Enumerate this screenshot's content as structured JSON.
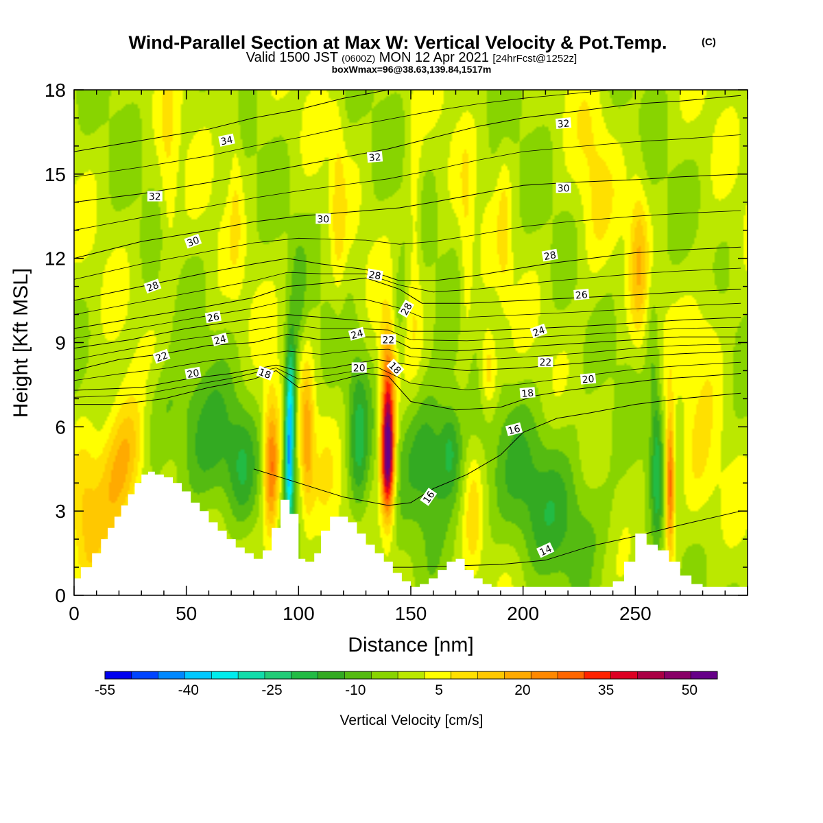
{
  "title": {
    "main": "Wind-Parallel Section at Max W: Vertical Velocity & Pot.Temp.",
    "copyright": "(C)",
    "valid_prefix": "Valid 1500 JST",
    "valid_utc": "(0600Z)",
    "valid_date": "MON 12 Apr 2021",
    "forecast": "[24hrFcst@1252z]",
    "boxwmax": "boxWmax=96@38.63,139.84,1517m"
  },
  "chart_data": {
    "type": "heatmap",
    "xlabel": "Distance [nm]",
    "ylabel": "Height [Kft MSL]",
    "xlim": [
      0,
      300
    ],
    "ylim": [
      0,
      18
    ],
    "x_ticks": [
      "0",
      "50",
      "100",
      "150",
      "200",
      "250"
    ],
    "y_ticks": [
      "0",
      "3",
      "6",
      "9",
      "12",
      "15",
      "18"
    ],
    "colorbar": {
      "label": "Vertical Velocity [cm/s]",
      "levels": [
        -55,
        -50,
        -45,
        -40,
        -35,
        -30,
        -25,
        -20,
        -15,
        -10,
        -5,
        0,
        5,
        10,
        15,
        20,
        25,
        30,
        35,
        40,
        45,
        50,
        55
      ],
      "tick_labels": [
        "-55",
        "-40",
        "-25",
        "-10",
        "5",
        "20",
        "35",
        "50"
      ],
      "colors": [
        "#0000ee",
        "#0044ff",
        "#0088ff",
        "#00c8ff",
        "#00ecec",
        "#11dcaa",
        "#22cc77",
        "#22bb44",
        "#33aa22",
        "#55bb11",
        "#88d400",
        "#bbe800",
        "#ffff00",
        "#ffe000",
        "#ffc800",
        "#ffaa00",
        "#ff8800",
        "#ff6600",
        "#ff2200",
        "#dd0022",
        "#aa0044",
        "#880066",
        "#660088"
      ]
    },
    "terrain": {
      "x": [
        0,
        3,
        8,
        12,
        15,
        18,
        21,
        24,
        27,
        30,
        33,
        36,
        40,
        44,
        48,
        52,
        56,
        60,
        64,
        68,
        72,
        76,
        80,
        84,
        88,
        92,
        96,
        100,
        103,
        107,
        110,
        114,
        118,
        122,
        126,
        130,
        134,
        138,
        142,
        146,
        150,
        154,
        158,
        162,
        166,
        170,
        174,
        178,
        182,
        186,
        190,
        194,
        200,
        210,
        220,
        230,
        240,
        245,
        250,
        255,
        260,
        265,
        270,
        275,
        280,
        285,
        290,
        297
      ],
      "y": [
        0.6,
        1.0,
        1.5,
        2.0,
        2.4,
        2.8,
        3.2,
        3.6,
        4.0,
        4.3,
        4.4,
        4.3,
        4.2,
        4.0,
        3.7,
        3.3,
        3.0,
        2.6,
        2.3,
        2.0,
        1.7,
        1.5,
        1.3,
        1.6,
        2.4,
        3.4,
        2.9,
        1.3,
        1.2,
        1.5,
        2.3,
        2.8,
        2.8,
        2.6,
        2.2,
        1.8,
        1.5,
        1.2,
        0.8,
        0.5,
        0.3,
        0.4,
        0.6,
        0.9,
        1.2,
        1.3,
        0.9,
        0.6,
        0.4,
        0.3,
        0.3,
        0.3,
        0.3,
        0.3,
        0.3,
        0.3,
        0.5,
        1.2,
        2.2,
        1.8,
        1.6,
        1.2,
        0.7,
        0.4,
        0.3,
        0.3,
        0.3,
        0.3
      ]
    },
    "w_features": [
      {
        "x": 5,
        "y": 3.0,
        "sx": 6,
        "sy": 3.0,
        "w": 10
      },
      {
        "x": 18,
        "y": 4.0,
        "sx": 10,
        "sy": 2.5,
        "w": 18
      },
      {
        "x": 25,
        "y": 5.5,
        "sx": 8,
        "sy": 2.0,
        "w": 12
      },
      {
        "x": 40,
        "y": 6.5,
        "sx": 15,
        "sy": 2.0,
        "w": -8
      },
      {
        "x": 60,
        "y": 5.0,
        "sx": 14,
        "sy": 2.5,
        "w": -14
      },
      {
        "x": 75,
        "y": 4.5,
        "sx": 6,
        "sy": 2.0,
        "w": -10
      },
      {
        "x": 88,
        "y": 4.5,
        "sx": 3.5,
        "sy": 2.5,
        "w": 30
      },
      {
        "x": 96,
        "y": 5.0,
        "sx": 2.2,
        "sy": 2.6,
        "w": -42
      },
      {
        "x": 97,
        "y": 7.5,
        "sx": 2.5,
        "sy": 2.0,
        "w": -22
      },
      {
        "x": 104,
        "y": 5.5,
        "sx": 3.0,
        "sy": 2.5,
        "w": 20
      },
      {
        "x": 112,
        "y": 4.5,
        "sx": 6,
        "sy": 2.5,
        "w": 4
      },
      {
        "x": 127,
        "y": 5.5,
        "sx": 4.5,
        "sy": 3.0,
        "w": -16
      },
      {
        "x": 140,
        "y": 5.0,
        "sx": 3.0,
        "sy": 2.2,
        "w": 62
      },
      {
        "x": 140,
        "y": 8.0,
        "sx": 3.5,
        "sy": 2.0,
        "w": 20
      },
      {
        "x": 160,
        "y": 5.0,
        "sx": 12,
        "sy": 2.5,
        "w": -18
      },
      {
        "x": 168,
        "y": 5.2,
        "sx": 4,
        "sy": 1.5,
        "w": -10
      },
      {
        "x": 178,
        "y": 3.0,
        "sx": 4,
        "sy": 2.5,
        "w": 10
      },
      {
        "x": 205,
        "y": 4.0,
        "sx": 25,
        "sy": 3.0,
        "w": -10
      },
      {
        "x": 225,
        "y": 2.5,
        "sx": 20,
        "sy": 2.0,
        "w": -6
      },
      {
        "x": 260,
        "y": 4.5,
        "sx": 2.5,
        "sy": 3.0,
        "w": -16
      },
      {
        "x": 266,
        "y": 4.0,
        "sx": 2.0,
        "sy": 2.5,
        "w": 34
      },
      {
        "x": 278,
        "y": 4.0,
        "sx": 8,
        "sy": 3.0,
        "w": 6
      },
      {
        "x": 42,
        "y": 14.5,
        "sx": 4,
        "sy": 3.5,
        "w": 8
      },
      {
        "x": 72,
        "y": 15.0,
        "sx": 3,
        "sy": 3.5,
        "w": 7
      },
      {
        "x": 118,
        "y": 14.0,
        "sx": 3,
        "sy": 4.0,
        "w": 8
      },
      {
        "x": 152,
        "y": 13.0,
        "sx": 3,
        "sy": 4.0,
        "w": 9
      },
      {
        "x": 175,
        "y": 12.0,
        "sx": 3,
        "sy": 3.5,
        "w": 8
      },
      {
        "x": 185,
        "y": 8.0,
        "sx": 4,
        "sy": 1.5,
        "w": 16
      },
      {
        "x": 192,
        "y": 13.0,
        "sx": 3,
        "sy": 3.0,
        "w": 7
      },
      {
        "x": 232,
        "y": 14.5,
        "sx": 8,
        "sy": 4.0,
        "w": 7
      },
      {
        "x": 252,
        "y": 12.0,
        "sx": 4,
        "sy": 3.0,
        "w": 14
      },
      {
        "x": 283,
        "y": 9.5,
        "sx": 8,
        "sy": 2.5,
        "w": 7
      },
      {
        "x": 100,
        "y": 10.5,
        "sx": 3,
        "sy": 2.0,
        "w": -7
      },
      {
        "x": 145,
        "y": 10.0,
        "sx": 3,
        "sy": 2.0,
        "w": -6
      },
      {
        "x": 258,
        "y": 9.0,
        "sx": 3,
        "sy": 3.0,
        "w": -6
      }
    ],
    "theta_contours": [
      {
        "value": 14,
        "x": [
          135,
          150,
          170,
          190,
          210,
          230,
          250,
          270,
          297
        ],
        "y": [
          1.0,
          1.0,
          1.05,
          1.1,
          1.25,
          1.75,
          2.1,
          2.5,
          3.0
        ]
      },
      {
        "value": 16,
        "x": [
          80,
          100,
          120,
          140,
          150,
          160,
          175,
          190,
          200,
          215,
          230,
          250,
          270,
          297
        ],
        "y": [
          4.5,
          4.0,
          3.5,
          3.2,
          3.3,
          3.8,
          4.3,
          5.0,
          5.8,
          6.3,
          6.5,
          6.8,
          7.0,
          7.2
        ]
      },
      {
        "value": 18,
        "x": [
          0,
          20,
          40,
          60,
          80,
          90,
          100,
          115,
          130,
          140,
          150,
          170,
          190,
          205,
          220,
          240,
          260,
          280,
          297
        ],
        "y": [
          6.8,
          6.8,
          7.0,
          7.4,
          7.7,
          8.0,
          7.4,
          7.6,
          7.9,
          7.8,
          6.9,
          6.6,
          6.7,
          7.1,
          7.3,
          7.5,
          7.7,
          7.8,
          7.9
        ]
      },
      {
        "value": 20,
        "x": [
          0,
          30,
          50,
          70,
          90,
          100,
          115,
          135,
          150,
          175,
          200,
          230,
          250,
          270,
          297
        ],
        "y": [
          7.3,
          7.4,
          7.7,
          7.9,
          8.2,
          8.0,
          8.1,
          8.4,
          8.2,
          8.0,
          8.1,
          8.3,
          8.5,
          8.6,
          8.7
        ]
      },
      {
        "value": 22,
        "x": [
          0,
          20,
          40,
          60,
          80,
          95,
          110,
          125,
          140,
          150,
          170,
          190,
          210,
          230,
          250,
          270,
          297
        ],
        "y": [
          8.0,
          8.4,
          8.6,
          8.9,
          9.0,
          9.3,
          9.1,
          9.2,
          9.2,
          8.8,
          8.7,
          8.8,
          8.9,
          9.0,
          9.1,
          9.2,
          9.2
        ]
      },
      {
        "value": 24,
        "x": [
          0,
          25,
          50,
          75,
          95,
          110,
          125,
          140,
          150,
          175,
          205,
          230,
          250,
          270,
          297
        ],
        "y": [
          8.8,
          9.1,
          9.5,
          9.8,
          10.0,
          9.9,
          9.8,
          9.7,
          9.4,
          9.4,
          9.5,
          9.6,
          9.7,
          9.8,
          9.9
        ]
      },
      {
        "value": 26,
        "x": [
          0,
          30,
          60,
          80,
          95,
          110,
          130,
          145,
          155,
          175,
          200,
          225,
          250,
          270,
          297
        ],
        "y": [
          9.5,
          9.9,
          10.3,
          10.6,
          11.0,
          11.1,
          11.3,
          10.9,
          10.4,
          10.4,
          10.5,
          10.6,
          10.7,
          10.8,
          10.9
        ]
      },
      {
        "value": 28,
        "x": [
          0,
          30,
          60,
          80,
          95,
          110,
          130,
          145,
          160,
          180,
          210,
          230,
          250,
          270,
          297
        ],
        "y": [
          10.5,
          11.0,
          11.5,
          11.8,
          12.0,
          11.8,
          11.6,
          11.2,
          11.2,
          11.4,
          11.8,
          12.0,
          12.2,
          12.3,
          12.4
        ]
      },
      {
        "value": 30,
        "x": [
          0,
          30,
          60,
          80,
          100,
          115,
          130,
          145,
          160,
          180,
          200,
          220,
          250,
          270,
          297
        ],
        "y": [
          12.0,
          12.6,
          13.0,
          13.3,
          13.5,
          13.6,
          13.7,
          13.8,
          14.0,
          14.3,
          14.6,
          14.7,
          14.8,
          14.9,
          15.0
        ]
      },
      {
        "value": 32,
        "x": [
          0,
          30,
          60,
          80,
          100,
          120,
          140,
          160,
          180,
          200,
          220,
          250,
          270,
          297
        ],
        "y": [
          14.0,
          14.3,
          14.7,
          15.0,
          15.3,
          15.6,
          15.9,
          16.3,
          16.7,
          17.0,
          17.2,
          17.5,
          17.6,
          17.8
        ]
      },
      {
        "value": 34,
        "x": [
          0,
          30,
          60,
          80,
          100,
          120,
          140,
          160,
          180,
          200,
          220,
          240,
          260,
          280
        ],
        "y": [
          15.8,
          16.2,
          16.6,
          17.0,
          17.3,
          17.7,
          18.0,
          18.2,
          18.3,
          18.4,
          18.5,
          18.6,
          18.7,
          18.8
        ]
      }
    ],
    "contour_labels": [
      {
        "text": "34",
        "x": 68,
        "y": 16.2,
        "angle": -12
      },
      {
        "text": "32",
        "x": 36,
        "y": 14.2,
        "angle": 0
      },
      {
        "text": "32",
        "x": 134,
        "y": 15.6,
        "angle": -5
      },
      {
        "text": "32",
        "x": 218,
        "y": 16.8,
        "angle": -5
      },
      {
        "text": "30",
        "x": 53,
        "y": 12.6,
        "angle": -20
      },
      {
        "text": "30",
        "x": 111,
        "y": 13.4,
        "angle": 0
      },
      {
        "text": "30",
        "x": 218,
        "y": 14.5,
        "angle": 0
      },
      {
        "text": "28",
        "x": 35,
        "y": 11.0,
        "angle": -20
      },
      {
        "text": "28",
        "x": 134,
        "y": 11.4,
        "angle": 10
      },
      {
        "text": "28",
        "x": 212,
        "y": 12.1,
        "angle": -10
      },
      {
        "text": "28",
        "x": 148,
        "y": 10.2,
        "angle": -60
      },
      {
        "text": "26",
        "x": 62,
        "y": 9.9,
        "angle": -10
      },
      {
        "text": "26",
        "x": 226,
        "y": 10.7,
        "angle": -5
      },
      {
        "text": "24",
        "x": 65,
        "y": 9.1,
        "angle": -15
      },
      {
        "text": "24",
        "x": 126,
        "y": 9.3,
        "angle": -15
      },
      {
        "text": "24",
        "x": 207,
        "y": 9.4,
        "angle": -20
      },
      {
        "text": "22",
        "x": 39,
        "y": 8.5,
        "angle": -20
      },
      {
        "text": "22",
        "x": 140,
        "y": 9.1,
        "angle": 0
      },
      {
        "text": "22",
        "x": 210,
        "y": 8.3,
        "angle": 0
      },
      {
        "text": "20",
        "x": 53,
        "y": 7.9,
        "angle": -10
      },
      {
        "text": "20",
        "x": 127,
        "y": 8.1,
        "angle": 0
      },
      {
        "text": "20",
        "x": 229,
        "y": 7.7,
        "angle": -5
      },
      {
        "text": "18",
        "x": 85,
        "y": 7.9,
        "angle": 20
      },
      {
        "text": "18",
        "x": 143,
        "y": 8.1,
        "angle": 45
      },
      {
        "text": "18",
        "x": 202,
        "y": 7.2,
        "angle": -5
      },
      {
        "text": "16",
        "x": 196,
        "y": 5.9,
        "angle": -15
      },
      {
        "text": "16",
        "x": 158,
        "y": 3.5,
        "angle": -55
      },
      {
        "text": "14",
        "x": 210,
        "y": 1.6,
        "angle": -25
      }
    ]
  }
}
